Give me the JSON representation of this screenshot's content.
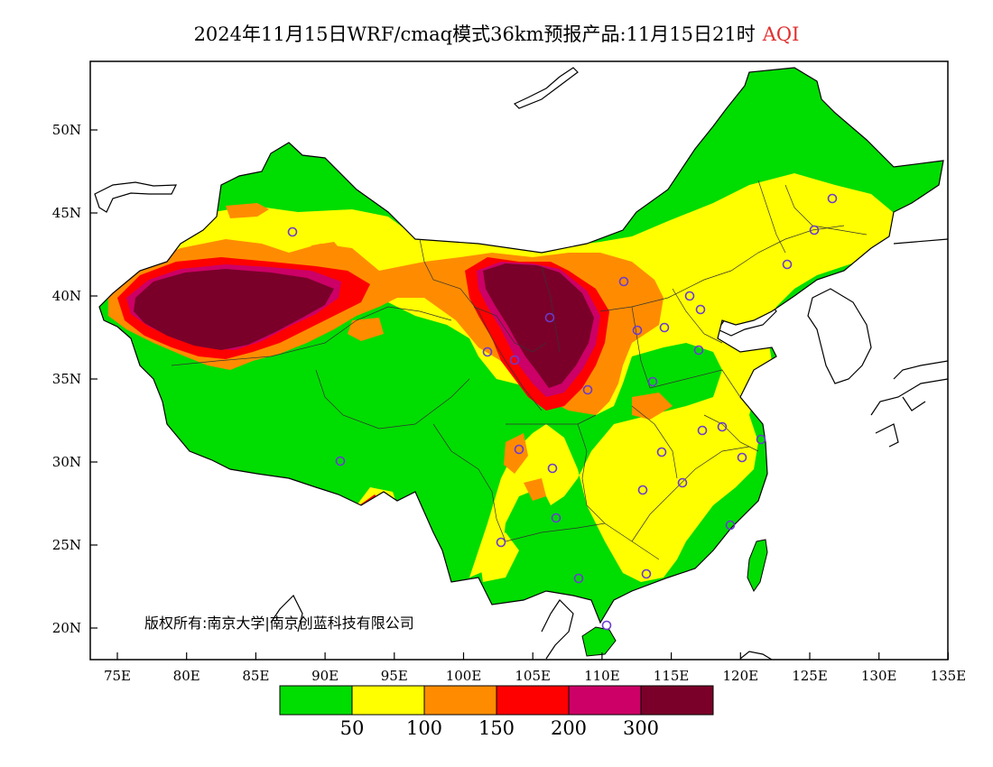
{
  "title": {
    "main": "2024年11月15日WRF/cmaq模式36km预报产品:11月15日21时",
    "variable": "AQI"
  },
  "map": {
    "lat_ticks": [
      "50N",
      "45N",
      "40N",
      "35N",
      "30N",
      "25N",
      "20N"
    ],
    "lon_ticks": [
      "75E",
      "80E",
      "85E",
      "90E",
      "95E",
      "100E",
      "105E",
      "110E",
      "115E",
      "120E",
      "125E",
      "130E",
      "135E"
    ],
    "copyright": "版权所有:南京大学|南京创蓝科技有限公司"
  },
  "legend": {
    "colors": [
      "#00dd00",
      "#ffff00",
      "#ff8c00",
      "#ff0000",
      "#cc0066",
      "#7a0029"
    ],
    "thresholds": [
      "50",
      "100",
      "150",
      "200",
      "300"
    ]
  }
}
